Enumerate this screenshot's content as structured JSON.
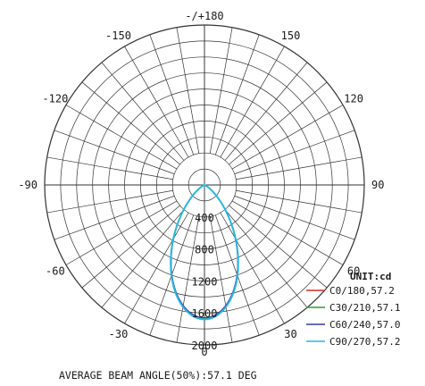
{
  "chart_data": {
    "type": "polar",
    "title": "",
    "angle_labels": [
      {
        "angle": 180,
        "text": "-/+180"
      },
      {
        "angle": 150,
        "text": "150"
      },
      {
        "angle": 120,
        "text": "120"
      },
      {
        "angle": 90,
        "text": "90"
      },
      {
        "angle": 60,
        "text": "60"
      },
      {
        "angle": 30,
        "text": "30"
      },
      {
        "angle": 0,
        "text": "0"
      },
      {
        "angle": -30,
        "text": "-30"
      },
      {
        "angle": -60,
        "text": "-60"
      },
      {
        "angle": -90,
        "text": "-90"
      },
      {
        "angle": -120,
        "text": "-120"
      },
      {
        "angle": -150,
        "text": "-150"
      }
    ],
    "radial_ticks": [
      400,
      800,
      1200,
      1600,
      2000
    ],
    "rmax": 2000,
    "unit_label": "UNIT:cd",
    "series": [
      {
        "name": "C0/180,57.2",
        "color": "#d62828",
        "beam_angle": 57.2,
        "peak": 1670
      },
      {
        "name": "C30/210,57.1",
        "color": "#2e9e2e",
        "beam_angle": 57.1,
        "peak": 1665
      },
      {
        "name": "C60/240,57.0",
        "color": "#3a3aa8",
        "beam_angle": 57.0,
        "peak": 1660
      },
      {
        "name": "C90/270,57.2",
        "color": "#29b6e0",
        "beam_angle": 57.2,
        "peak": 1680
      }
    ],
    "footer": "AVERAGE BEAM ANGLE(50%):57.1 DEG"
  }
}
